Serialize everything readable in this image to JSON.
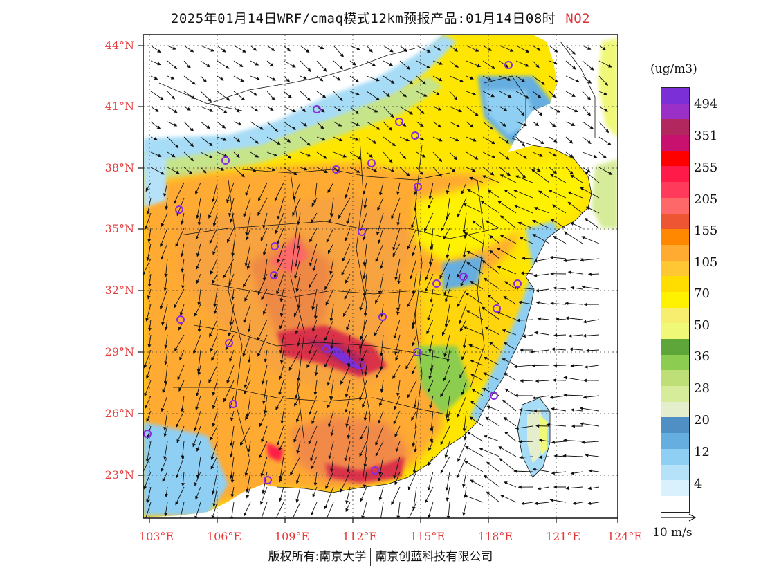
{
  "header": {
    "title": "2025年01月14日WRF/cmaq模式12km预报产品:01月14日08时",
    "species": "NO2"
  },
  "map": {
    "lat_labels": [
      "44°N",
      "41°N",
      "38°N",
      "35°N",
      "32°N",
      "29°N",
      "26°N",
      "23°N"
    ],
    "lon_labels": [
      "103°E",
      "106°E",
      "109°E",
      "112°E",
      "115°E",
      "118°E",
      "121°E",
      "124°E"
    ],
    "lat_values": [
      44,
      41,
      38,
      35,
      32,
      29,
      26,
      23
    ],
    "lon_values": [
      103,
      106,
      109,
      112,
      115,
      118,
      121,
      124
    ],
    "extent": {
      "lon_min": 103,
      "lon_max": 124,
      "lat_min": 21.8,
      "lat_max": 44.5
    }
  },
  "colorbar": {
    "unit": "(ug/m3)",
    "colors": [
      "#7b2fd6",
      "#9b30c8",
      "#b2275e",
      "#c8106e",
      "#ff0000",
      "#ff1a4a",
      "#ff3a5a",
      "#ff6868",
      "#ee5533",
      "#ff8800",
      "#ffaa30",
      "#ffc733",
      "#ffdd00",
      "#fff200",
      "#f7ee70",
      "#f0f878",
      "#5ea63a",
      "#8ccc50",
      "#bedf78",
      "#d7ec9a",
      "#e4eecd",
      "#4f8fc4",
      "#66aee0",
      "#8fcff3",
      "#b5e2f8",
      "#d9f1fc",
      "#ffffff"
    ],
    "labels": [
      "494",
      "351",
      "255",
      "205",
      "155",
      "105",
      "70",
      "50",
      "36",
      "28",
      "20",
      "12",
      "4"
    ]
  },
  "wind_reference": "10 m/s",
  "footer": {
    "copyright": "版权所有:南京大学",
    "company": "南京创蓝科技有限公司"
  },
  "cities_marked": 27
}
